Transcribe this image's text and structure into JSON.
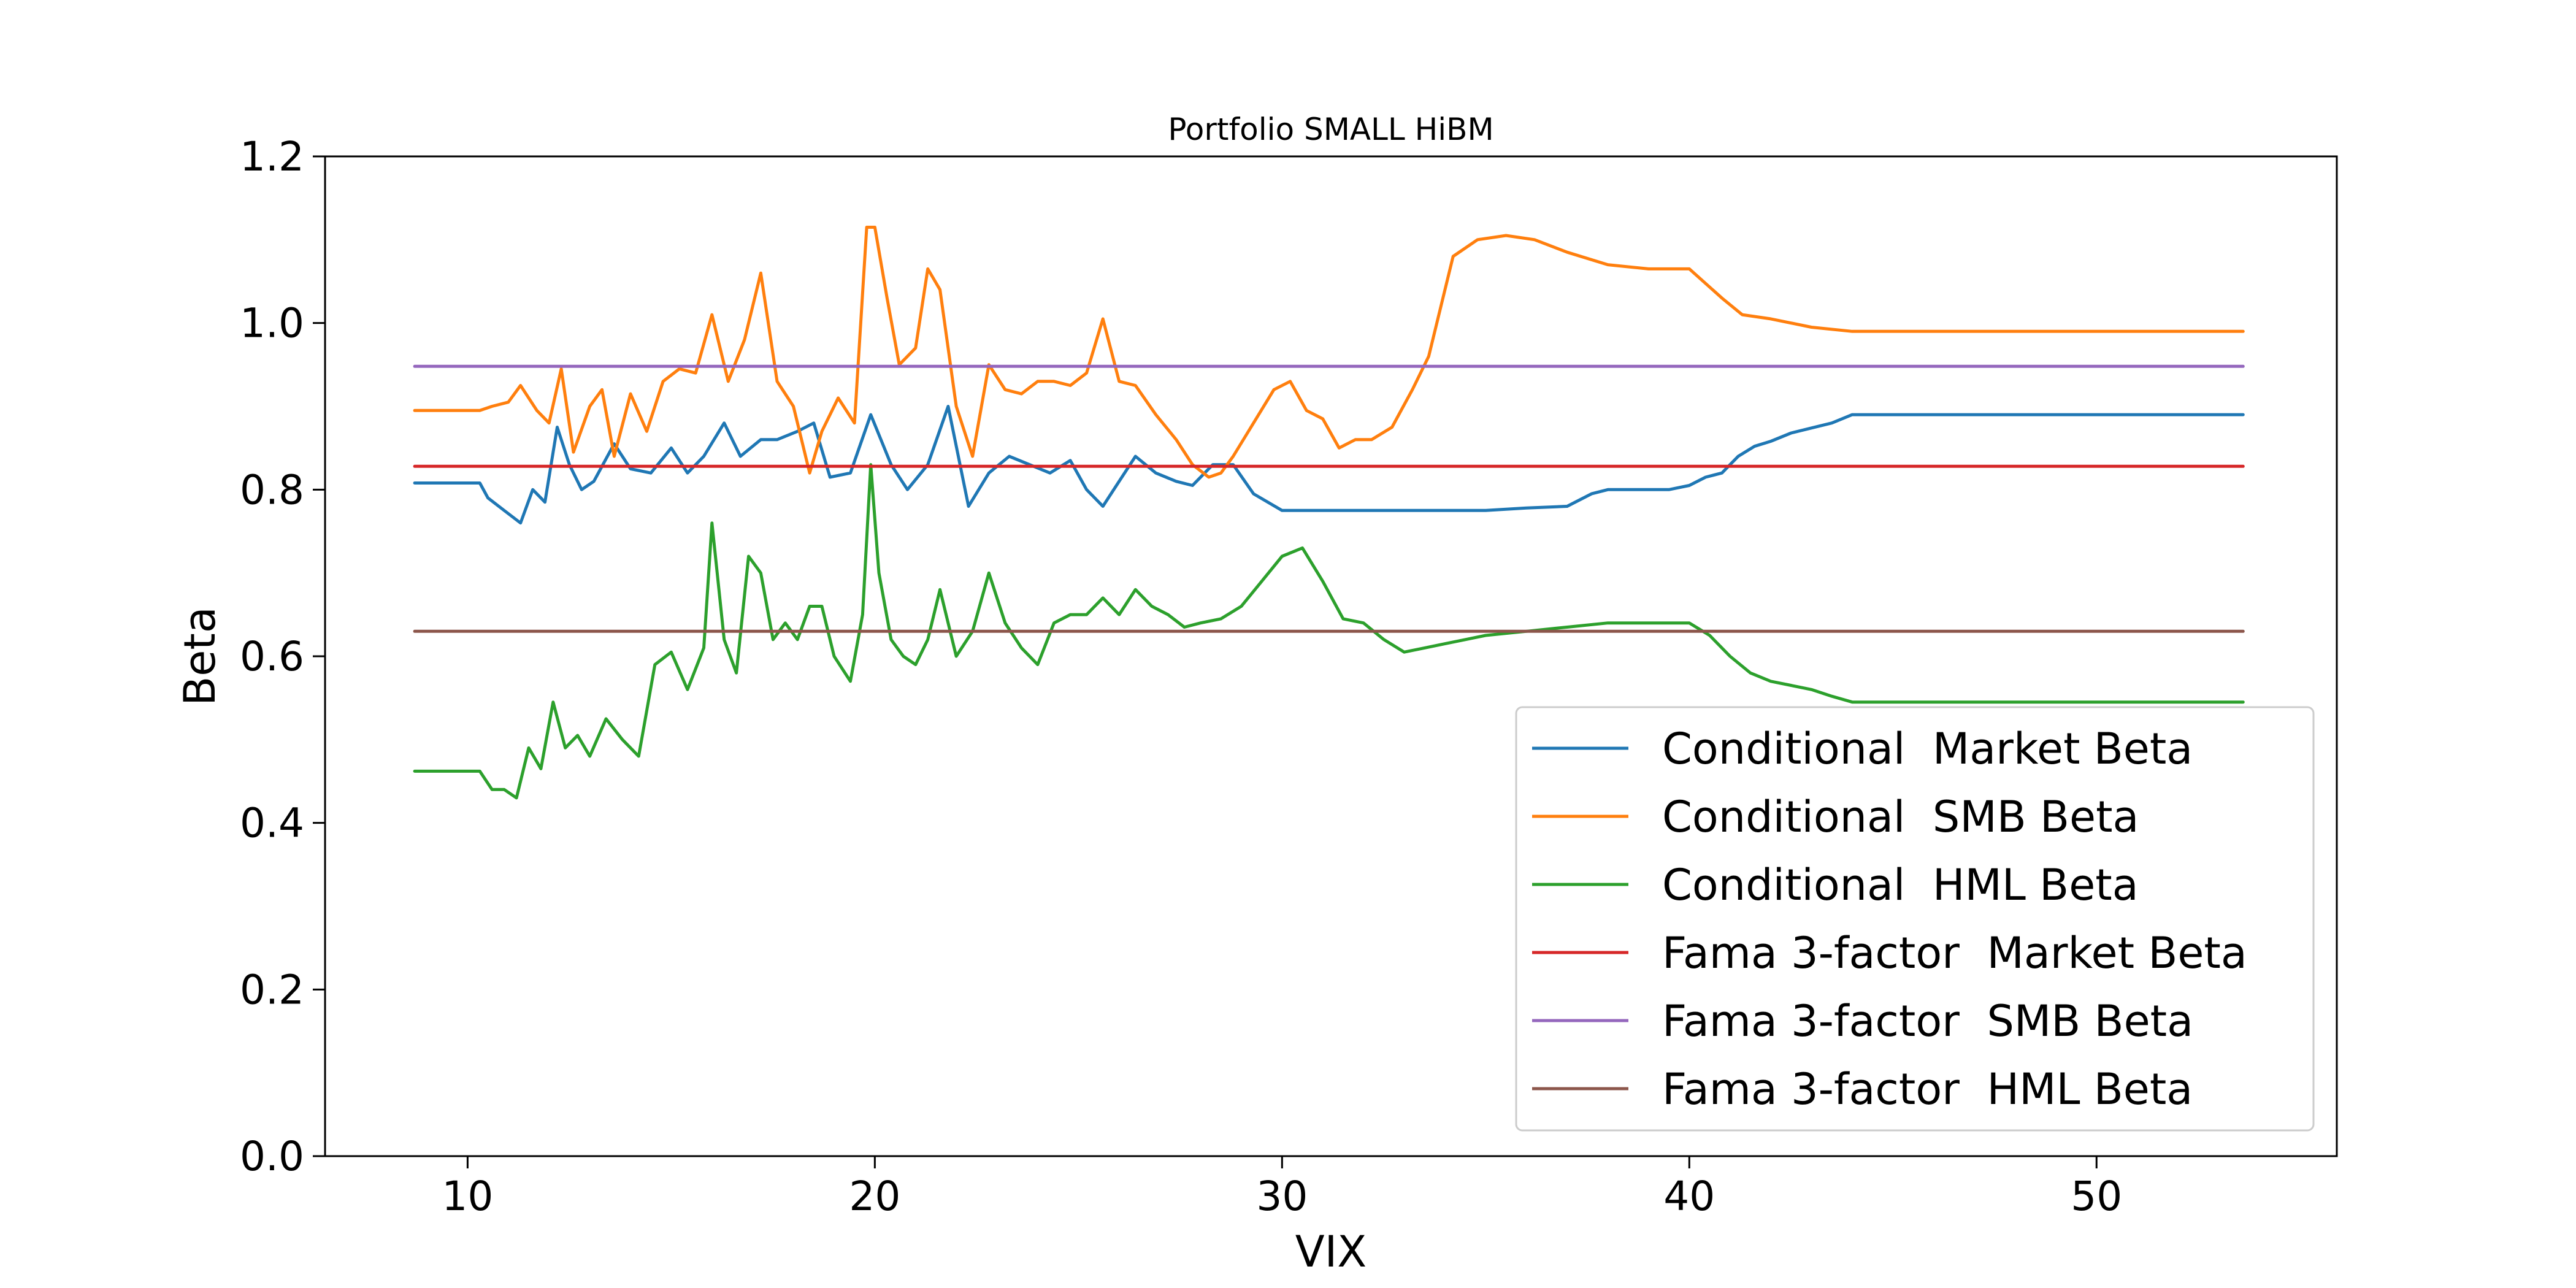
{
  "chart_data": {
    "type": "line",
    "title": "Portfolio SMALL HiBM",
    "xlabel": "VIX",
    "ylabel": "Beta",
    "xlim": [
      6.5,
      55.9
    ],
    "ylim": [
      0.0,
      1.2
    ],
    "xticks": [
      10,
      20,
      30,
      40,
      50
    ],
    "yticks": [
      0.0,
      0.2,
      0.4,
      0.6,
      0.8,
      1.0,
      1.2
    ],
    "ytick_labels": [
      "0.0",
      "0.2",
      "0.4",
      "0.6",
      "0.8",
      "1.0",
      "1.2"
    ],
    "grid": false,
    "legend_position": "lower-right",
    "series": [
      {
        "name": "Conditional  Market Beta",
        "color": "#1f77b4",
        "x": [
          8.7,
          10.3,
          10.5,
          10.9,
          11.3,
          11.6,
          11.9,
          12.2,
          12.5,
          12.8,
          13.1,
          13.6,
          14.0,
          14.5,
          15.0,
          15.4,
          15.8,
          16.3,
          16.7,
          17.2,
          17.6,
          18.1,
          18.5,
          18.9,
          19.4,
          19.9,
          20.4,
          20.8,
          21.3,
          21.8,
          22.3,
          22.8,
          23.3,
          23.8,
          24.3,
          24.8,
          25.2,
          25.6,
          26.0,
          26.4,
          26.9,
          27.4,
          27.8,
          28.3,
          28.8,
          29.3,
          30.0,
          31.0,
          32.0,
          33.0,
          34.0,
          35.0,
          36.0,
          37.0,
          37.6,
          38.0,
          38.5,
          39.0,
          39.5,
          40.0,
          40.4,
          40.8,
          41.2,
          41.6,
          42.0,
          42.5,
          43.0,
          43.5,
          44.0,
          45.0,
          50.0,
          53.6
        ],
        "y": [
          0.808,
          0.808,
          0.79,
          0.775,
          0.76,
          0.8,
          0.785,
          0.875,
          0.83,
          0.8,
          0.81,
          0.855,
          0.825,
          0.82,
          0.85,
          0.82,
          0.84,
          0.88,
          0.84,
          0.86,
          0.86,
          0.87,
          0.88,
          0.815,
          0.82,
          0.89,
          0.83,
          0.8,
          0.83,
          0.9,
          0.78,
          0.82,
          0.84,
          0.83,
          0.82,
          0.835,
          0.8,
          0.78,
          0.81,
          0.84,
          0.82,
          0.81,
          0.805,
          0.83,
          0.83,
          0.795,
          0.775,
          0.775,
          0.775,
          0.775,
          0.775,
          0.775,
          0.778,
          0.78,
          0.795,
          0.8,
          0.8,
          0.8,
          0.8,
          0.805,
          0.815,
          0.82,
          0.84,
          0.852,
          0.858,
          0.868,
          0.874,
          0.88,
          0.89,
          0.89,
          0.89,
          0.89
        ]
      },
      {
        "name": "Conditional  SMB Beta",
        "color": "#ff7f0e",
        "x": [
          8.7,
          10.3,
          10.6,
          11.0,
          11.3,
          11.7,
          12.0,
          12.3,
          12.6,
          13.0,
          13.3,
          13.6,
          14.0,
          14.4,
          14.8,
          15.2,
          15.6,
          16.0,
          16.4,
          16.8,
          17.2,
          17.6,
          18.0,
          18.4,
          18.7,
          19.1,
          19.5,
          19.8,
          20.0,
          20.3,
          20.6,
          21.0,
          21.3,
          21.6,
          22.0,
          22.4,
          22.8,
          23.2,
          23.6,
          24.0,
          24.4,
          24.8,
          25.2,
          25.6,
          26.0,
          26.4,
          26.9,
          27.4,
          27.8,
          28.2,
          28.5,
          28.8,
          29.3,
          29.8,
          30.2,
          30.6,
          31.0,
          31.4,
          31.8,
          32.2,
          32.7,
          33.2,
          33.6,
          34.2,
          34.8,
          35.5,
          36.2,
          37.0,
          38.0,
          39.0,
          40.0,
          40.8,
          41.3,
          42.0,
          43.0,
          44.0,
          45.0,
          50.0,
          53.6
        ],
        "y": [
          0.895,
          0.895,
          0.9,
          0.905,
          0.925,
          0.895,
          0.88,
          0.945,
          0.845,
          0.9,
          0.92,
          0.84,
          0.915,
          0.87,
          0.93,
          0.945,
          0.94,
          1.01,
          0.93,
          0.98,
          1.06,
          0.93,
          0.9,
          0.82,
          0.87,
          0.91,
          0.88,
          1.115,
          1.115,
          1.03,
          0.95,
          0.97,
          1.065,
          1.04,
          0.9,
          0.84,
          0.95,
          0.92,
          0.915,
          0.93,
          0.93,
          0.925,
          0.94,
          1.005,
          0.93,
          0.925,
          0.89,
          0.86,
          0.83,
          0.815,
          0.82,
          0.84,
          0.88,
          0.92,
          0.93,
          0.895,
          0.885,
          0.85,
          0.86,
          0.86,
          0.875,
          0.92,
          0.96,
          1.08,
          1.1,
          1.105,
          1.1,
          1.085,
          1.07,
          1.065,
          1.065,
          1.03,
          1.01,
          1.005,
          0.995,
          0.99,
          0.99,
          0.99,
          0.99
        ]
      },
      {
        "name": "Conditional  HML Beta",
        "color": "#2ca02c",
        "x": [
          8.7,
          10.3,
          10.6,
          10.9,
          11.2,
          11.5,
          11.8,
          12.1,
          12.4,
          12.7,
          13.0,
          13.4,
          13.8,
          14.2,
          14.6,
          15.0,
          15.4,
          15.8,
          16.0,
          16.3,
          16.6,
          16.9,
          17.2,
          17.5,
          17.8,
          18.1,
          18.4,
          18.7,
          19.0,
          19.4,
          19.7,
          19.9,
          20.1,
          20.4,
          20.7,
          21.0,
          21.3,
          21.6,
          22.0,
          22.4,
          22.8,
          23.2,
          23.6,
          24.0,
          24.4,
          24.8,
          25.2,
          25.6,
          26.0,
          26.4,
          26.8,
          27.2,
          27.6,
          28.0,
          28.5,
          29.0,
          29.5,
          30.0,
          30.5,
          31.0,
          31.5,
          32.0,
          32.5,
          33.0,
          33.5,
          34.0,
          34.5,
          35.0,
          36.0,
          37.0,
          38.0,
          39.0,
          40.0,
          40.5,
          41.0,
          41.5,
          42.0,
          42.5,
          43.0,
          43.5,
          44.0,
          45.0,
          50.0,
          53.6
        ],
        "y": [
          0.462,
          0.462,
          0.44,
          0.44,
          0.43,
          0.49,
          0.465,
          0.545,
          0.49,
          0.505,
          0.48,
          0.525,
          0.5,
          0.48,
          0.59,
          0.605,
          0.56,
          0.61,
          0.76,
          0.62,
          0.58,
          0.72,
          0.7,
          0.62,
          0.64,
          0.62,
          0.66,
          0.66,
          0.6,
          0.57,
          0.65,
          0.83,
          0.7,
          0.62,
          0.6,
          0.59,
          0.62,
          0.68,
          0.6,
          0.63,
          0.7,
          0.64,
          0.61,
          0.59,
          0.64,
          0.65,
          0.65,
          0.67,
          0.65,
          0.68,
          0.66,
          0.65,
          0.635,
          0.64,
          0.645,
          0.66,
          0.69,
          0.72,
          0.73,
          0.69,
          0.645,
          0.64,
          0.62,
          0.605,
          0.61,
          0.615,
          0.62,
          0.625,
          0.63,
          0.635,
          0.64,
          0.64,
          0.64,
          0.625,
          0.6,
          0.58,
          0.57,
          0.565,
          0.56,
          0.552,
          0.545,
          0.545,
          0.545,
          0.545
        ]
      },
      {
        "name": "Fama 3-factor  Market Beta",
        "color": "#d62728",
        "x": [
          8.7,
          53.6
        ],
        "y": [
          0.828,
          0.828
        ]
      },
      {
        "name": "Fama 3-factor  SMB Beta",
        "color": "#9467bd",
        "x": [
          8.7,
          53.6
        ],
        "y": [
          0.948,
          0.948
        ]
      },
      {
        "name": "Fama 3-factor  HML Beta",
        "color": "#8c564b",
        "x": [
          8.7,
          53.6
        ],
        "y": [
          0.63,
          0.63
        ]
      }
    ]
  }
}
